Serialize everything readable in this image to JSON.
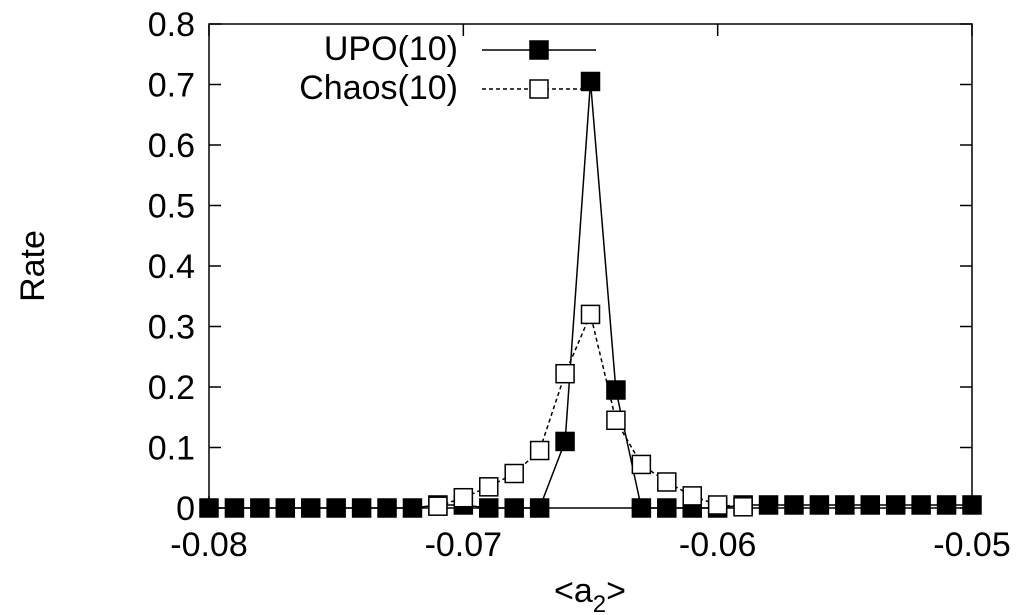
{
  "chart_data": {
    "type": "line",
    "title": "",
    "xlabel": "<a",
    "xlabel_subscript": "2",
    "xlabel_suffix": ">",
    "ylabel": "Rate",
    "xlim": [
      -0.08,
      -0.05
    ],
    "ylim": [
      0,
      0.8
    ],
    "x_ticks": [
      -0.08,
      -0.07,
      -0.06,
      -0.05
    ],
    "x_tick_labels": [
      "-0.08",
      "-0.07",
      "-0.06",
      "-0.05"
    ],
    "y_ticks": [
      0,
      0.1,
      0.2,
      0.3,
      0.4,
      0.5,
      0.6,
      0.7,
      0.8
    ],
    "y_tick_labels": [
      "0",
      "0.1",
      "0.2",
      "0.3",
      "0.4",
      "0.5",
      "0.6",
      "0.7",
      "0.8"
    ],
    "grid": false,
    "legend_position": "top-center",
    "series": [
      {
        "name": "UPO(10)",
        "style": "solid",
        "marker": "filled-square",
        "x": [
          -0.08,
          -0.079,
          -0.078,
          -0.077,
          -0.076,
          -0.075,
          -0.074,
          -0.073,
          -0.072,
          -0.071,
          -0.07,
          -0.069,
          -0.068,
          -0.067,
          -0.066,
          -0.065,
          -0.064,
          -0.063,
          -0.062,
          -0.061,
          -0.06,
          -0.059,
          -0.058,
          -0.057,
          -0.056,
          -0.055,
          -0.054,
          -0.053,
          -0.052,
          -0.051,
          -0.05
        ],
        "y": [
          0,
          0,
          0,
          0,
          0,
          0,
          0,
          0,
          0,
          0.005,
          0.005,
          0,
          0,
          0,
          0.11,
          0.705,
          0.195,
          0,
          0,
          0,
          0,
          0.005,
          0.005,
          0.005,
          0.005,
          0.005,
          0.005,
          0.005,
          0.005,
          0.005,
          0.005
        ]
      },
      {
        "name": "Chaos(10)",
        "style": "dashed",
        "marker": "open-square",
        "x": [
          -0.071,
          -0.07,
          -0.069,
          -0.068,
          -0.067,
          -0.066,
          -0.065,
          -0.064,
          -0.063,
          -0.062,
          -0.061,
          -0.06,
          -0.059
        ],
        "y": [
          0.003,
          0.017,
          0.035,
          0.057,
          0.095,
          0.222,
          0.32,
          0.145,
          0.072,
          0.043,
          0.02,
          0.005,
          0.002
        ]
      }
    ]
  }
}
